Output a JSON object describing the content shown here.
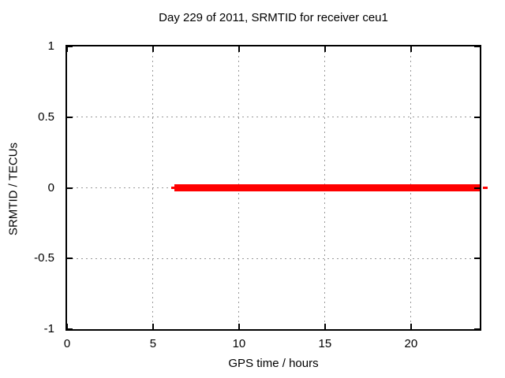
{
  "chart_data": {
    "type": "line",
    "title": "Day 229 of 2011, SRMTID for receiver ceu1",
    "xlabel": "GPS time / hours",
    "ylabel": "SRMTID / TECUs",
    "xlim": [
      0,
      24
    ],
    "ylim": [
      -1,
      1
    ],
    "grid": true,
    "legend": "none",
    "x_ticks": [
      {
        "value": 0,
        "label": "0"
      },
      {
        "value": 5,
        "label": "5"
      },
      {
        "value": 10,
        "label": "10"
      },
      {
        "value": 15,
        "label": "15"
      },
      {
        "value": 20,
        "label": "20"
      }
    ],
    "y_ticks": [
      {
        "value": 1,
        "label": "1"
      },
      {
        "value": 0.5,
        "label": "0.5"
      },
      {
        "value": 0,
        "label": "0"
      },
      {
        "value": -0.5,
        "label": "-0.5"
      },
      {
        "value": -1,
        "label": "-1"
      }
    ],
    "series": [
      {
        "name": "SRMTID",
        "color": "#ff0000",
        "y": 0,
        "x_start": 6.25,
        "x_end": 24,
        "description": "thick flat horizontal line at 0 TECUs from ~6.25 h to 24 h"
      }
    ]
  },
  "colors": {
    "background": "#ffffff",
    "axis": "#000000",
    "grid": "#999999",
    "series_red": "#ff0000",
    "text": "#000000"
  }
}
